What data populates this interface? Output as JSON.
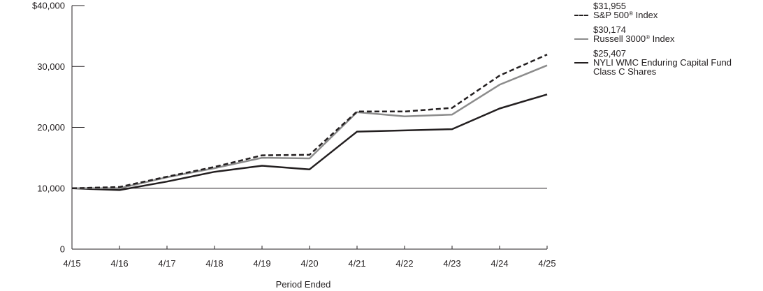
{
  "chart_data": {
    "type": "line",
    "xlabel": "Period Ended",
    "ylabel": "",
    "categories": [
      "4/15",
      "4/16",
      "4/17",
      "4/18",
      "4/19",
      "4/20",
      "4/21",
      "4/22",
      "4/23",
      "4/24",
      "4/25"
    ],
    "ylim": [
      0,
      40000
    ],
    "yticks": [
      "$40,000",
      "30,000",
      "20,000",
      "10,000",
      "0"
    ],
    "ytick_values": [
      40000,
      30000,
      20000,
      10000,
      0
    ],
    "reference_line": 10000,
    "grid": false,
    "legend_position": "right",
    "series": [
      {
        "key": "sp500",
        "name": "S&P 500",
        "name_suffix": " Index",
        "end_label": "$31,955",
        "color": "#231f20",
        "style": "dashed",
        "values": [
          10000,
          10200,
          11900,
          13500,
          15400,
          15500,
          22600,
          22600,
          23200,
          28500,
          31955
        ]
      },
      {
        "key": "russell",
        "name": "Russell 3000",
        "name_suffix": " Index",
        "end_label": "$30,174",
        "color": "#8c8c8c",
        "style": "solid",
        "values": [
          10000,
          10000,
          11800,
          13300,
          15000,
          14900,
          22500,
          21800,
          22100,
          27000,
          30174
        ]
      },
      {
        "key": "fund",
        "name": "NYLI WMC Enduring Capital Fund",
        "name_line2": "Class C Shares",
        "end_label": "$25,407",
        "color": "#231f20",
        "style": "solid",
        "values": [
          10000,
          9700,
          11100,
          12700,
          13700,
          13100,
          19300,
          19500,
          19700,
          23100,
          25407
        ]
      }
    ],
    "registered_mark": "®"
  }
}
